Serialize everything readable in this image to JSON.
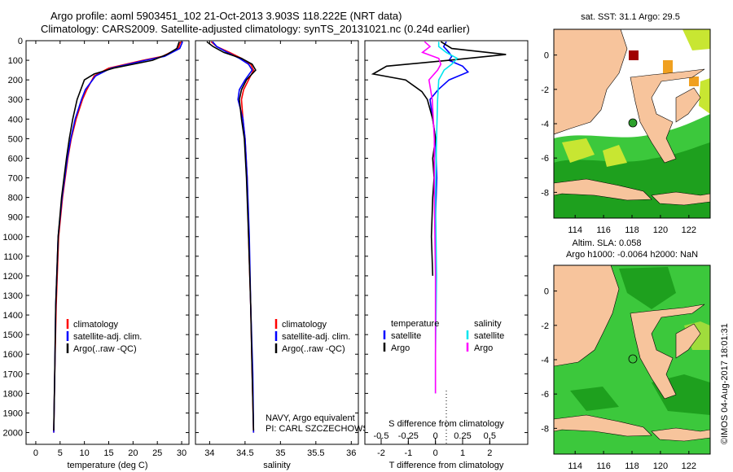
{
  "header": {
    "line1": "Argo profile: aoml 5903451_102 21-Oct-2013 3.903S 118.222E (NRT data)",
    "line2": "Climatology: CARS2009. Satellite-adjusted climatology: synTS_20131021.nc (0.24d earlier)"
  },
  "side": {
    "sst_title": "sat. SST: 31.1  Argo: 29.5",
    "sla_title1": "Altim. SLA: 0.058",
    "sla_title2": "Argo h1000: -0.0064 h2000: NaN",
    "stamp": "©IMOS 04-Aug-2017 18:01:31"
  },
  "annot": {
    "navy": "NAVY, Argo equivalent",
    "pi": "PI: CARL SZCZECHOWSKI"
  },
  "colors": {
    "clim": "#ff0000",
    "sat": "#0000ff",
    "argo": "#000000",
    "salsat": "#00e5ee",
    "salargo": "#ff00ff",
    "land": "#f7c49c",
    "sea": "#3cc83c",
    "seadeep": "#1ea01e",
    "nodata": "#ffffff"
  },
  "legends": {
    "temp": [
      "climatology",
      "satellite-adj. clim.",
      "Argo(..raw -QC)"
    ],
    "sal": [
      "climatology",
      "satellite-adj. clim.",
      "Argo(..raw -QC)"
    ],
    "diff_head_t": "temperature",
    "diff_head_s": "salinity",
    "diff_t": [
      "satellite",
      "Argo"
    ],
    "diff_s": [
      "satellite",
      "Argo"
    ]
  },
  "chart_data": [
    {
      "type": "line",
      "name": "temperature",
      "xlabel": "temperature (deg C)",
      "ylabel": "",
      "xlim": [
        -2,
        31.5
      ],
      "ylim": [
        0,
        2060
      ],
      "xticks": [
        0,
        5,
        10,
        15,
        20,
        25,
        30
      ],
      "yticks": [
        0,
        100,
        200,
        300,
        400,
        500,
        600,
        700,
        800,
        900,
        1000,
        1100,
        1200,
        1300,
        1400,
        1500,
        1600,
        1700,
        1800,
        1900,
        2000
      ],
      "series": [
        {
          "name": "climatology",
          "color": "clim",
          "depth": [
            5,
            40,
            80,
            100,
            140,
            180,
            250,
            300,
            400,
            500,
            600,
            800,
            1000,
            1350,
            1700,
            2000
          ],
          "values": [
            29.8,
            29.3,
            26,
            22,
            15,
            12,
            10.5,
            9.6,
            8.3,
            7.3,
            6.6,
            5.5,
            4.7,
            4.2,
            3.9,
            3.7
          ]
        },
        {
          "name": "satellite-adj. clim.",
          "color": "sat",
          "depth": [
            5,
            40,
            80,
            100,
            140,
            180,
            250,
            300,
            400,
            500,
            600,
            800,
            1000,
            1350,
            1700,
            2000
          ],
          "values": [
            30.2,
            29.6,
            26.5,
            22.5,
            15.5,
            12.3,
            10.2,
            9.4,
            8.1,
            7.2,
            6.5,
            5.4,
            4.6,
            4.1,
            3.9,
            3.7
          ]
        },
        {
          "name": "Argo(..raw -QC)",
          "color": "argo",
          "depth": [
            5,
            40,
            70,
            100,
            140,
            170,
            200,
            300,
            400,
            500,
            600,
            800,
            1000,
            1350,
            1700,
            1990
          ],
          "values": [
            29.5,
            29,
            27,
            24,
            16,
            12,
            10,
            8.5,
            7.6,
            6.9,
            6.3,
            5.3,
            4.6,
            4.1,
            3.9,
            3.7
          ]
        }
      ]
    },
    {
      "type": "line",
      "name": "salinity",
      "xlabel": "salinity",
      "ylabel": "",
      "xlim": [
        33.8,
        36.1
      ],
      "ylim": [
        0,
        2060
      ],
      "xticks": [
        34,
        34.5,
        35,
        35.5,
        36
      ],
      "series": [
        {
          "name": "climatology",
          "color": "clim",
          "depth": [
            5,
            30,
            60,
            90,
            120,
            150,
            200,
            250,
            300,
            400,
            500,
            700,
            1000,
            1350,
            1700,
            2000
          ],
          "values": [
            34.02,
            34.1,
            34.28,
            34.45,
            34.58,
            34.62,
            34.55,
            34.48,
            34.45,
            34.47,
            34.5,
            34.53,
            34.55,
            34.58,
            34.6,
            34.62
          ]
        },
        {
          "name": "satellite-adj. clim.",
          "color": "sat",
          "depth": [
            5,
            30,
            60,
            90,
            120,
            150,
            200,
            250,
            300,
            400,
            500,
            700,
            1000,
            1350,
            1700,
            2000
          ],
          "values": [
            34.04,
            34.1,
            34.25,
            34.42,
            34.55,
            34.6,
            34.5,
            34.42,
            34.4,
            34.47,
            34.5,
            34.53,
            34.56,
            34.58,
            34.61,
            34.62
          ]
        },
        {
          "name": "Argo(..raw -QC)",
          "color": "argo",
          "depth": [
            5,
            30,
            60,
            90,
            120,
            150,
            200,
            250,
            300,
            400,
            500,
            700,
            1000,
            1350,
            1700,
            1990
          ],
          "values": [
            33.96,
            34.05,
            34.2,
            34.45,
            34.6,
            34.65,
            34.52,
            34.45,
            34.42,
            34.45,
            34.49,
            34.52,
            34.55,
            34.58,
            34.6,
            34.62
          ]
        }
      ]
    },
    {
      "type": "line",
      "name": "difference from climatology",
      "xlabel_top": "S difference from climatology",
      "xlabel": "T difference from climatology",
      "xlim": [
        -2.6,
        3.4
      ],
      "ylim": [
        0,
        2060
      ],
      "xticks_top": [
        -0.5,
        -0.25,
        0,
        0.25,
        0.5
      ],
      "xticks_top_labels": [
        "-0.5",
        "-0.25",
        "0",
        "0.25",
        "0.5"
      ],
      "xticks": [
        -2,
        -1,
        0,
        1,
        2
      ],
      "series": [
        {
          "name": "T satellite",
          "color": "sat",
          "depth": [
            5,
            30,
            60,
            80,
            100,
            130,
            160,
            200,
            250,
            300,
            400,
            500,
            700,
            900,
            1200
          ],
          "values": [
            0.4,
            0.3,
            0.5,
            0.6,
            0.5,
            1.0,
            1.2,
            0.5,
            0.1,
            -0.2,
            -0.1,
            0,
            0.05,
            0,
            0.02
          ]
        },
        {
          "name": "T Argo",
          "color": "argo",
          "depth": [
            5,
            40,
            70,
            100,
            130,
            170,
            200,
            260,
            300,
            400,
            500,
            600,
            700,
            800,
            1000,
            1200
          ],
          "values": [
            0.2,
            0.6,
            2.6,
            0.5,
            -1.8,
            -2.3,
            -1.1,
            -0.5,
            -0.3,
            -0.1,
            0,
            -0.1,
            -0.05,
            -0.1,
            -0.15,
            -0.1
          ]
        },
        {
          "name": "S satellite",
          "color": "salsat",
          "depth": [
            5,
            30,
            60,
            90,
            120,
            150,
            200,
            300,
            500,
            800,
            1200,
            1600,
            1800
          ],
          "values": [
            0.03,
            0.03,
            0.1,
            0.2,
            0.15,
            0.08,
            0.03,
            0.02,
            0.01,
            0,
            0.01,
            0,
            0.0
          ]
        },
        {
          "name": "S Argo",
          "color": "salargo",
          "depth": [
            5,
            30,
            60,
            90,
            120,
            150,
            200,
            300,
            500,
            800,
            1200,
            1600,
            1800
          ],
          "values": [
            -0.1,
            -0.05,
            -0.12,
            0.03,
            0.05,
            0.02,
            -0.06,
            -0.03,
            -0.01,
            -0.01,
            0,
            0,
            0
          ]
        }
      ]
    },
    {
      "type": "heatmap",
      "name": "sat. SST map",
      "xticks": [
        114,
        116,
        118,
        120,
        122
      ],
      "yticks": [
        0,
        -2,
        -4,
        -6,
        -8
      ],
      "xlim": [
        112.5,
        123.5
      ],
      "ylim": [
        -9.5,
        1.5
      ],
      "argo_lon": 118.222,
      "argo_lat": -3.903
    },
    {
      "type": "heatmap",
      "name": "altimetry SLA map",
      "xticks": [
        114,
        116,
        118,
        120,
        122
      ],
      "yticks": [
        0,
        -2,
        -4,
        -6,
        -8
      ],
      "xlim": [
        112.5,
        123.5
      ],
      "ylim": [
        -9.5,
        1.5
      ],
      "argo_lon": 118.222,
      "argo_lat": -3.903
    }
  ]
}
